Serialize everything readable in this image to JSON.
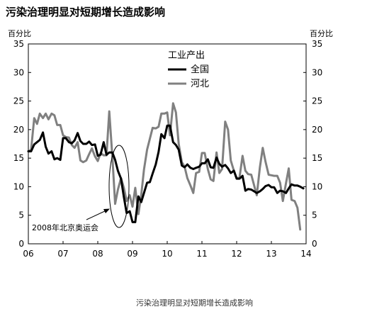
{
  "chart_data": {
    "type": "line",
    "title": "污染治理明显对短期增长造成影响",
    "ylabel_left": "百分比",
    "ylabel_right": "百分比",
    "ylim": [
      0,
      35
    ],
    "yticks": [
      0,
      5,
      10,
      15,
      20,
      25,
      30,
      35
    ],
    "xlim": [
      6,
      14
    ],
    "xticks": [
      "06",
      "07",
      "08",
      "09",
      "10",
      "11",
      "12",
      "13",
      "14"
    ],
    "legend_title": "工业产出",
    "legend_position": "top-center",
    "annotation": "2008年北京奥运会",
    "caption": "污染治理明显对短期增长造成影响",
    "series": [
      {
        "name": "全国",
        "color": "#000000",
        "points": [
          [
            6.0,
            16.2
          ],
          [
            6.08,
            16.2
          ],
          [
            6.17,
            17.4
          ],
          [
            6.25,
            17.8
          ],
          [
            6.33,
            18.2
          ],
          [
            6.42,
            19.5
          ],
          [
            6.5,
            17.0
          ],
          [
            6.58,
            15.8
          ],
          [
            6.67,
            16.2
          ],
          [
            6.75,
            14.8
          ],
          [
            6.83,
            15.0
          ],
          [
            6.92,
            14.7
          ],
          [
            7.0,
            18.5
          ],
          [
            7.08,
            18.5
          ],
          [
            7.17,
            17.8
          ],
          [
            7.25,
            17.6
          ],
          [
            7.33,
            18.1
          ],
          [
            7.42,
            19.4
          ],
          [
            7.5,
            18.0
          ],
          [
            7.58,
            17.5
          ],
          [
            7.67,
            17.5
          ],
          [
            7.75,
            17.9
          ],
          [
            7.83,
            17.3
          ],
          [
            7.92,
            17.4
          ],
          [
            8.0,
            15.4
          ],
          [
            8.08,
            15.6
          ],
          [
            8.17,
            17.8
          ],
          [
            8.25,
            15.6
          ],
          [
            8.33,
            16.0
          ],
          [
            8.42,
            16.0
          ],
          [
            8.5,
            14.7
          ],
          [
            8.58,
            12.8
          ],
          [
            8.67,
            11.4
          ],
          [
            8.75,
            8.2
          ],
          [
            8.83,
            5.4
          ],
          [
            8.92,
            5.7
          ],
          [
            9.0,
            3.8
          ],
          [
            9.08,
            3.8
          ],
          [
            9.17,
            8.3
          ],
          [
            9.25,
            7.3
          ],
          [
            9.33,
            8.9
          ],
          [
            9.42,
            10.7
          ],
          [
            9.5,
            10.8
          ],
          [
            9.58,
            12.3
          ],
          [
            9.67,
            13.9
          ],
          [
            9.75,
            16.1
          ],
          [
            9.83,
            19.2
          ],
          [
            9.92,
            18.5
          ],
          [
            10.0,
            20.7
          ],
          [
            10.08,
            20.7
          ],
          [
            10.17,
            17.8
          ],
          [
            10.25,
            17.3
          ],
          [
            10.33,
            16.5
          ],
          [
            10.42,
            13.7
          ],
          [
            10.5,
            13.4
          ],
          [
            10.58,
            13.9
          ],
          [
            10.67,
            13.3
          ],
          [
            10.75,
            13.1
          ],
          [
            10.83,
            13.3
          ],
          [
            10.92,
            13.5
          ],
          [
            11.0,
            14.1
          ],
          [
            11.08,
            14.1
          ],
          [
            11.17,
            14.8
          ],
          [
            11.25,
            13.4
          ],
          [
            11.33,
            13.3
          ],
          [
            11.42,
            15.1
          ],
          [
            11.5,
            14.0
          ],
          [
            11.58,
            13.5
          ],
          [
            11.67,
            13.8
          ],
          [
            11.75,
            13.2
          ],
          [
            11.83,
            12.4
          ],
          [
            11.92,
            12.8
          ],
          [
            12.0,
            11.4
          ],
          [
            12.08,
            11.4
          ],
          [
            12.17,
            11.9
          ],
          [
            12.25,
            9.3
          ],
          [
            12.33,
            9.6
          ],
          [
            12.42,
            9.5
          ],
          [
            12.5,
            9.2
          ],
          [
            12.58,
            8.9
          ],
          [
            12.67,
            9.2
          ],
          [
            12.75,
            9.6
          ],
          [
            12.83,
            10.1
          ],
          [
            12.92,
            10.3
          ],
          [
            13.0,
            9.9
          ],
          [
            13.08,
            9.9
          ],
          [
            13.17,
            8.9
          ],
          [
            13.25,
            9.3
          ],
          [
            13.33,
            9.2
          ],
          [
            13.42,
            8.9
          ],
          [
            13.5,
            9.7
          ],
          [
            13.58,
            10.4
          ],
          [
            13.67,
            10.2
          ],
          [
            13.75,
            10.2
          ],
          [
            13.83,
            10.0
          ],
          [
            13.92,
            9.7
          ]
        ]
      },
      {
        "name": "河北",
        "color": "#808080",
        "points": [
          [
            6.0,
            16.2
          ],
          [
            6.08,
            16.5
          ],
          [
            6.17,
            22.0
          ],
          [
            6.25,
            21.0
          ],
          [
            6.33,
            22.8
          ],
          [
            6.42,
            22.0
          ],
          [
            6.5,
            22.8
          ],
          [
            6.58,
            21.8
          ],
          [
            6.67,
            22.8
          ],
          [
            6.75,
            22.5
          ],
          [
            6.83,
            20.8
          ],
          [
            6.92,
            20.8
          ],
          [
            7.0,
            19.0
          ],
          [
            7.08,
            18.7
          ],
          [
            7.17,
            18.6
          ],
          [
            7.25,
            17.3
          ],
          [
            7.33,
            16.8
          ],
          [
            7.42,
            17.8
          ],
          [
            7.5,
            14.6
          ],
          [
            7.58,
            14.3
          ],
          [
            7.67,
            14.6
          ],
          [
            7.75,
            15.7
          ],
          [
            7.83,
            16.7
          ],
          [
            7.92,
            15.3
          ],
          [
            8.0,
            14.5
          ],
          [
            8.08,
            15.9
          ],
          [
            8.17,
            15.5
          ],
          [
            8.25,
            15.5
          ],
          [
            8.33,
            23.2
          ],
          [
            8.42,
            15.2
          ],
          [
            8.5,
            7.0
          ],
          [
            8.58,
            9.5
          ],
          [
            8.67,
            11.5
          ],
          [
            8.75,
            9.8
          ],
          [
            8.83,
            7.5
          ],
          [
            8.92,
            8.5
          ],
          [
            9.0,
            6.5
          ],
          [
            9.08,
            9.8
          ],
          [
            9.17,
            5.2
          ],
          [
            9.25,
            8.5
          ],
          [
            9.33,
            13.0
          ],
          [
            9.42,
            16.5
          ],
          [
            9.5,
            18.4
          ],
          [
            9.58,
            20.3
          ],
          [
            9.67,
            20.2
          ],
          [
            9.75,
            20.5
          ],
          [
            9.83,
            22.8
          ],
          [
            9.92,
            22.8
          ],
          [
            10.0,
            23.0
          ],
          [
            10.08,
            19.0
          ],
          [
            10.17,
            24.6
          ],
          [
            10.25,
            23.0
          ],
          [
            10.33,
            17.5
          ],
          [
            10.42,
            14.3
          ],
          [
            10.5,
            13.5
          ],
          [
            10.58,
            11.5
          ],
          [
            10.67,
            10.2
          ],
          [
            10.75,
            8.9
          ],
          [
            10.83,
            12.4
          ],
          [
            10.92,
            12.6
          ],
          [
            11.0,
            15.9
          ],
          [
            11.08,
            15.9
          ],
          [
            11.17,
            13.1
          ],
          [
            11.25,
            11.3
          ],
          [
            11.33,
            11.0
          ],
          [
            11.42,
            16.0
          ],
          [
            11.5,
            12.4
          ],
          [
            11.58,
            13.1
          ],
          [
            11.67,
            21.4
          ],
          [
            11.75,
            20.0
          ],
          [
            11.83,
            14.6
          ],
          [
            11.92,
            12.8
          ],
          [
            12.0,
            11.5
          ],
          [
            12.08,
            11.5
          ],
          [
            12.17,
            15.4
          ],
          [
            12.25,
            12.8
          ],
          [
            12.33,
            12.2
          ],
          [
            12.42,
            12.1
          ],
          [
            12.5,
            10.3
          ],
          [
            12.58,
            8.5
          ],
          [
            12.67,
            13.4
          ],
          [
            12.75,
            16.8
          ],
          [
            12.83,
            14.4
          ],
          [
            12.92,
            12.1
          ],
          [
            13.0,
            12.0
          ],
          [
            13.08,
            11.9
          ],
          [
            13.17,
            11.9
          ],
          [
            13.25,
            10.7
          ],
          [
            13.33,
            7.5
          ],
          [
            13.42,
            10.6
          ],
          [
            13.5,
            13.2
          ],
          [
            13.58,
            7.7
          ],
          [
            13.67,
            7.5
          ],
          [
            13.75,
            6.3
          ],
          [
            13.83,
            2.5
          ]
        ]
      }
    ]
  }
}
